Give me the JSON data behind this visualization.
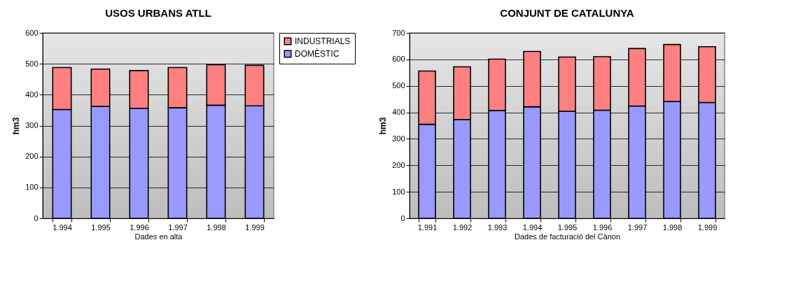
{
  "chart_data": [
    {
      "type": "bar",
      "title": "USOS URBANS ATLL",
      "xlabel": "Dades en alta",
      "ylabel": "hm3",
      "categories": [
        "1.994",
        "1.995",
        "1.996",
        "1.997",
        "1.998",
        "1.999"
      ],
      "stacked": true,
      "ylim": [
        0,
        600
      ],
      "yticks": [
        0,
        100,
        200,
        300,
        400,
        500,
        600
      ],
      "grid": "y",
      "legend": "right",
      "series": [
        {
          "name": "DOMÈSTIC",
          "color": "#9999ff",
          "values": [
            352,
            362,
            356,
            358,
            366,
            364
          ]
        },
        {
          "name": "INDUSTRIALS",
          "color": "#ff8080",
          "values": [
            136,
            121,
            122,
            130,
            131,
            131
          ]
        }
      ]
    },
    {
      "type": "bar",
      "title": "CONJUNT DE CATALUNYA",
      "xlabel": "Dades de facturació del Cànon",
      "ylabel": "hm3",
      "categories": [
        "1.991",
        "1.992",
        "1.993",
        "1.994",
        "1.995",
        "1.996",
        "1.997",
        "1.998",
        "1.999"
      ],
      "stacked": true,
      "ylim": [
        0,
        700
      ],
      "yticks": [
        0,
        100,
        200,
        300,
        400,
        500,
        600,
        700
      ],
      "grid": "y",
      "series": [
        {
          "color": "#9999ff",
          "values": [
            355,
            373,
            407,
            421,
            404,
            408,
            424,
            441,
            437
          ]
        },
        {
          "color": "#ff8080",
          "values": [
            201,
            199,
            194,
            209,
            205,
            202,
            217,
            215,
            211
          ]
        }
      ]
    }
  ]
}
